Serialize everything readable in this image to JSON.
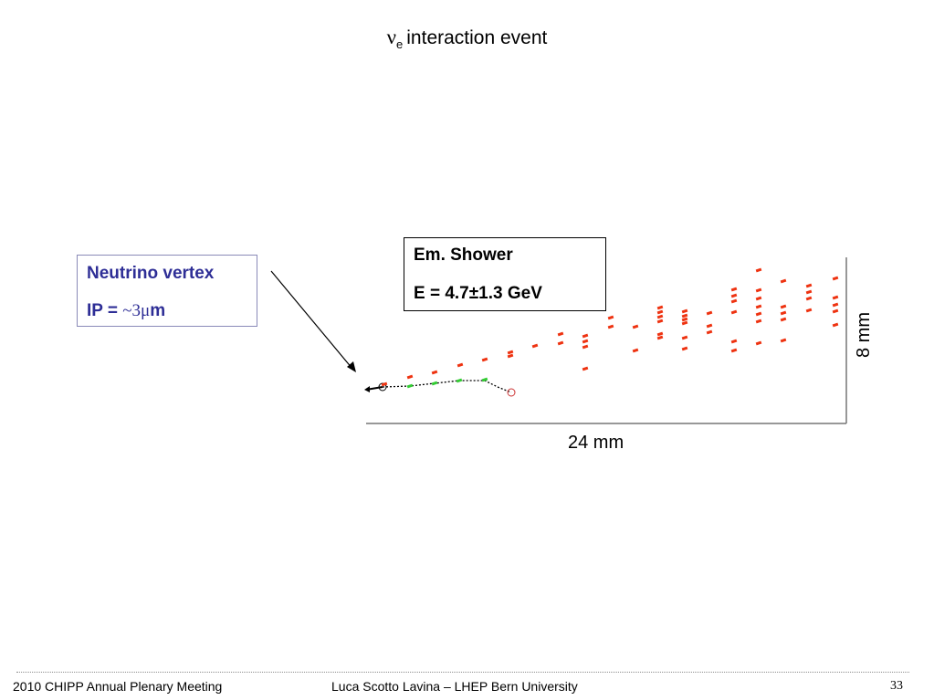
{
  "title": {
    "symbol": "ν",
    "subscript": "e",
    "text": "interaction event"
  },
  "vertex_box": {
    "title": "Neutrino vertex",
    "ip_prefix": "IP = ",
    "ip_value": "~3μ",
    "ip_unit": "m"
  },
  "shower_box": {
    "title": "Em. Shower",
    "energy": "E = 4.7±1.3 GeV"
  },
  "scale": {
    "horizontal": "24 mm",
    "vertical": "8 mm"
  },
  "colors": {
    "shower_hits": "#ee3311",
    "track_hits": "#33cc33",
    "vertex_text": "#2e2e96"
  },
  "footer": {
    "left": "2010 CHIPP Annual Plenary Meeting",
    "center": "Luca Scotto Lavina – LHEP Bern University",
    "page": "33"
  }
}
